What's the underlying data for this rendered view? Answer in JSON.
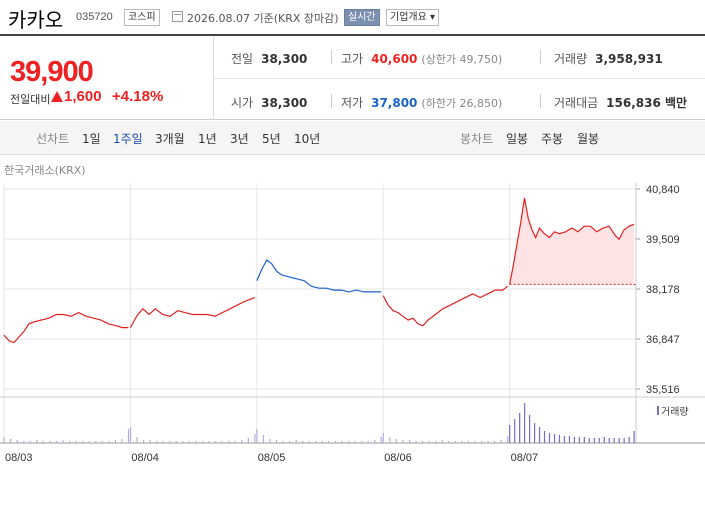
{
  "header": {
    "stock_name": "카카오",
    "stock_code": "035720",
    "market_badge": "코스피",
    "as_of": "2026.08.07 기준(KRX 장마감)",
    "live_badge": "실시간",
    "company_badge": "기업개요 ▾"
  },
  "summary": {
    "price": "39,900",
    "change_label": "전일대비",
    "change_value": "1,600",
    "change_pct": "+4.18%",
    "prev_close_label": "전일",
    "prev_close": "38,300",
    "open_label": "시가",
    "open": "38,300",
    "high_label": "고가",
    "high": "40,600",
    "upper_limit": "(상한가 49,750)",
    "low_label": "저가",
    "low": "37,800",
    "lower_limit": "(하한가 26,850)",
    "volume_label": "거래량",
    "volume": "3,958,931",
    "amount_label": "거래대금",
    "amount": "156,836 백만"
  },
  "toolbar": {
    "line_label": "선차트",
    "periods": [
      "1일",
      "1주일",
      "3개월",
      "1년",
      "3년",
      "5년",
      "10년"
    ],
    "selected_period": "1주일",
    "candle_label": "봉차트",
    "candles": [
      "일봉",
      "주봉",
      "월봉"
    ]
  },
  "colors": {
    "up": "#e22222",
    "down": "#1a63c9",
    "fill": "#fde3e3"
  },
  "chart_data": {
    "type": "line",
    "source_label": "한국거래소(KRX)",
    "volume_legend": "거래량",
    "y_ticks": [
      "40,840",
      "39,509",
      "38,178",
      "36,847",
      "35,516"
    ],
    "x_ticks": [
      "08/03",
      "08/04",
      "08/05",
      "08/06",
      "08/07"
    ],
    "ylim": [
      35516,
      40840
    ],
    "prev_close_ref": 38300,
    "series": [
      {
        "day": "08/03",
        "points": [
          [
            0.0,
            36950
          ],
          [
            0.04,
            36800
          ],
          [
            0.08,
            36750
          ],
          [
            0.12,
            36900
          ],
          [
            0.16,
            37050
          ],
          [
            0.2,
            37250
          ],
          [
            0.24,
            37300
          ],
          [
            0.3,
            37350
          ],
          [
            0.36,
            37400
          ],
          [
            0.42,
            37500
          ],
          [
            0.48,
            37500
          ],
          [
            0.54,
            37450
          ],
          [
            0.6,
            37550
          ],
          [
            0.66,
            37450
          ],
          [
            0.72,
            37400
          ],
          [
            0.78,
            37350
          ],
          [
            0.84,
            37250
          ],
          [
            0.9,
            37200
          ],
          [
            0.95,
            37150
          ],
          [
            1.0,
            37150
          ]
        ]
      },
      {
        "day": "08/04",
        "points": [
          [
            0.0,
            37150
          ],
          [
            0.05,
            37450
          ],
          [
            0.1,
            37650
          ],
          [
            0.15,
            37500
          ],
          [
            0.2,
            37650
          ],
          [
            0.26,
            37500
          ],
          [
            0.32,
            37450
          ],
          [
            0.38,
            37600
          ],
          [
            0.44,
            37550
          ],
          [
            0.5,
            37500
          ],
          [
            0.56,
            37500
          ],
          [
            0.62,
            37500
          ],
          [
            0.68,
            37450
          ],
          [
            0.74,
            37550
          ],
          [
            0.8,
            37650
          ],
          [
            0.86,
            37750
          ],
          [
            0.92,
            37850
          ],
          [
            1.0,
            37950
          ]
        ]
      },
      {
        "day": "08/05",
        "points": [
          [
            0.0,
            38400
          ],
          [
            0.04,
            38700
          ],
          [
            0.08,
            38950
          ],
          [
            0.12,
            38850
          ],
          [
            0.16,
            38650
          ],
          [
            0.2,
            38550
          ],
          [
            0.26,
            38500
          ],
          [
            0.32,
            38450
          ],
          [
            0.38,
            38400
          ],
          [
            0.44,
            38250
          ],
          [
            0.5,
            38200
          ],
          [
            0.56,
            38200
          ],
          [
            0.62,
            38150
          ],
          [
            0.68,
            38150
          ],
          [
            0.74,
            38100
          ],
          [
            0.8,
            38150
          ],
          [
            0.86,
            38100
          ],
          [
            0.92,
            38100
          ],
          [
            1.0,
            38100
          ]
        ]
      },
      {
        "day": "08/06",
        "points": [
          [
            0.0,
            38000
          ],
          [
            0.04,
            37750
          ],
          [
            0.08,
            37600
          ],
          [
            0.12,
            37550
          ],
          [
            0.16,
            37450
          ],
          [
            0.2,
            37350
          ],
          [
            0.24,
            37400
          ],
          [
            0.28,
            37250
          ],
          [
            0.32,
            37200
          ],
          [
            0.36,
            37350
          ],
          [
            0.42,
            37500
          ],
          [
            0.48,
            37650
          ],
          [
            0.54,
            37750
          ],
          [
            0.6,
            37850
          ],
          [
            0.66,
            37950
          ],
          [
            0.72,
            38050
          ],
          [
            0.78,
            37950
          ],
          [
            0.84,
            38050
          ],
          [
            0.9,
            38150
          ],
          [
            0.96,
            38150
          ],
          [
            1.0,
            38250
          ]
        ]
      },
      {
        "day": "08/07",
        "points": [
          [
            0.0,
            38300
          ],
          [
            0.03,
            38800
          ],
          [
            0.06,
            39400
          ],
          [
            0.09,
            39950
          ],
          [
            0.12,
            40600
          ],
          [
            0.15,
            40050
          ],
          [
            0.18,
            39750
          ],
          [
            0.21,
            39550
          ],
          [
            0.24,
            39800
          ],
          [
            0.28,
            39650
          ],
          [
            0.32,
            39550
          ],
          [
            0.36,
            39700
          ],
          [
            0.4,
            39650
          ],
          [
            0.45,
            39700
          ],
          [
            0.5,
            39800
          ],
          [
            0.55,
            39700
          ],
          [
            0.6,
            39850
          ],
          [
            0.65,
            39850
          ],
          [
            0.7,
            39700
          ],
          [
            0.75,
            39800
          ],
          [
            0.8,
            39850
          ],
          [
            0.85,
            39600
          ],
          [
            0.88,
            39500
          ],
          [
            0.92,
            39750
          ],
          [
            0.96,
            39850
          ],
          [
            1.0,
            39900
          ]
        ]
      }
    ],
    "volume": [
      {
        "day": "08/03",
        "values": [
          6,
          4,
          3,
          2,
          2,
          3,
          2,
          2,
          2,
          3,
          2,
          2,
          2,
          2,
          2,
          2,
          2,
          3,
          4,
          14
        ]
      },
      {
        "day": "08/04",
        "values": [
          16,
          6,
          3,
          3,
          2,
          2,
          2,
          2,
          2,
          2,
          2,
          2,
          2,
          2,
          2,
          2,
          2,
          3,
          5,
          9
        ]
      },
      {
        "day": "08/05",
        "values": [
          14,
          8,
          4,
          3,
          2,
          2,
          3,
          2,
          2,
          2,
          2,
          2,
          2,
          2,
          2,
          2,
          2,
          2,
          3,
          6
        ]
      },
      {
        "day": "08/06",
        "values": [
          10,
          6,
          4,
          3,
          3,
          2,
          2,
          2,
          2,
          3,
          2,
          2,
          2,
          2,
          2,
          2,
          2,
          2,
          3,
          7
        ]
      },
      {
        "day": "08/07",
        "values": [
          18,
          24,
          30,
          40,
          28,
          20,
          16,
          12,
          10,
          9,
          8,
          7,
          7,
          6,
          6,
          6,
          5,
          5,
          5,
          6,
          5,
          5,
          5,
          5,
          6,
          12
        ]
      }
    ]
  }
}
